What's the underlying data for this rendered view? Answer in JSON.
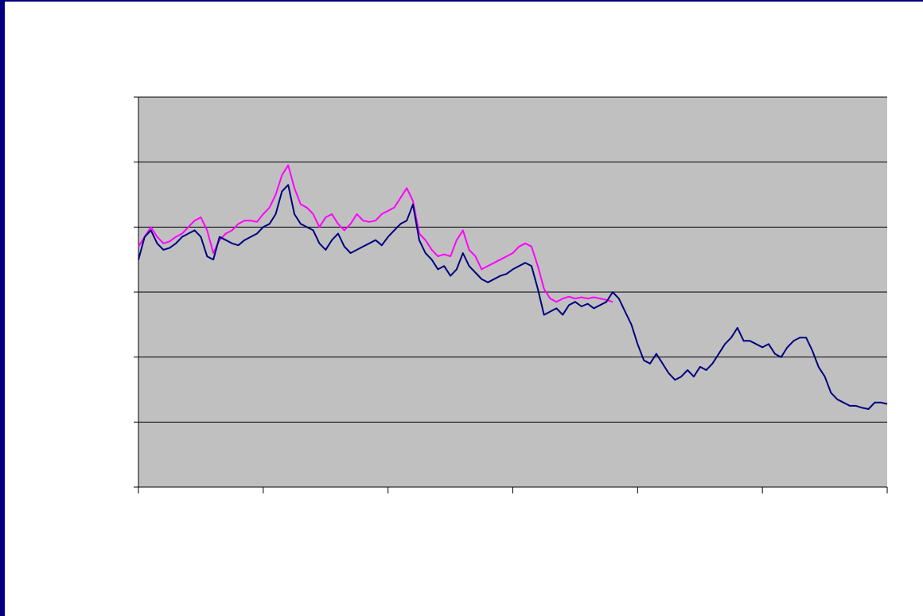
{
  "colors": {
    "frame": "#000080",
    "plot_background": "#c0c0c0",
    "gridline": "#000000",
    "axis": "#000000"
  },
  "chart_data": {
    "type": "line",
    "title": "",
    "xlabel": "",
    "ylabel": "",
    "legend": "none",
    "grid": "horizontal",
    "xlim": [
      0,
      6
    ],
    "ylim": [
      0,
      6
    ],
    "x_ticks": [
      0,
      1,
      2,
      3,
      4,
      5,
      6
    ],
    "y_ticks": [
      0,
      1,
      2,
      3,
      4,
      5,
      6
    ],
    "series": [
      {
        "color": "#ff00ff",
        "x": [
          0.0,
          0.05,
          0.1,
          0.15,
          0.2,
          0.25,
          0.3,
          0.35,
          0.4,
          0.45,
          0.5,
          0.55,
          0.6,
          0.65,
          0.7,
          0.75,
          0.8,
          0.85,
          0.9,
          0.95,
          1.0,
          1.05,
          1.1,
          1.15,
          1.2,
          1.25,
          1.3,
          1.35,
          1.4,
          1.45,
          1.5,
          1.55,
          1.6,
          1.65,
          1.7,
          1.75,
          1.8,
          1.85,
          1.9,
          1.95,
          2.0,
          2.05,
          2.1,
          2.15,
          2.2,
          2.25,
          2.3,
          2.35,
          2.4,
          2.45,
          2.5,
          2.55,
          2.6,
          2.65,
          2.7,
          2.75,
          2.8,
          2.85,
          2.9,
          2.95,
          3.0,
          3.05,
          3.1,
          3.15,
          3.2,
          3.25,
          3.3,
          3.35,
          3.4,
          3.45,
          3.5,
          3.55,
          3.6,
          3.65,
          3.7,
          3.75,
          3.8
        ],
        "y": [
          3.7,
          3.85,
          4.0,
          3.85,
          3.75,
          3.78,
          3.85,
          3.9,
          4.0,
          4.1,
          4.15,
          3.95,
          3.6,
          3.8,
          3.9,
          3.95,
          4.05,
          4.1,
          4.1,
          4.08,
          4.2,
          4.3,
          4.5,
          4.8,
          4.95,
          4.6,
          4.35,
          4.3,
          4.2,
          4.0,
          4.15,
          4.2,
          4.05,
          3.95,
          4.05,
          4.2,
          4.1,
          4.08,
          4.1,
          4.2,
          4.25,
          4.3,
          4.45,
          4.6,
          4.4,
          3.9,
          3.8,
          3.65,
          3.55,
          3.58,
          3.55,
          3.8,
          3.95,
          3.65,
          3.55,
          3.35,
          3.4,
          3.45,
          3.5,
          3.55,
          3.6,
          3.7,
          3.75,
          3.7,
          3.4,
          3.05,
          2.9,
          2.85,
          2.9,
          2.93,
          2.9,
          2.92,
          2.9,
          2.92,
          2.9,
          2.88,
          2.85
        ]
      },
      {
        "color": "#000080",
        "x": [
          0.0,
          0.05,
          0.1,
          0.15,
          0.2,
          0.25,
          0.3,
          0.35,
          0.4,
          0.45,
          0.5,
          0.55,
          0.6,
          0.65,
          0.7,
          0.75,
          0.8,
          0.85,
          0.9,
          0.95,
          1.0,
          1.05,
          1.1,
          1.15,
          1.2,
          1.25,
          1.3,
          1.35,
          1.4,
          1.45,
          1.5,
          1.55,
          1.6,
          1.65,
          1.7,
          1.75,
          1.8,
          1.85,
          1.9,
          1.95,
          2.0,
          2.05,
          2.1,
          2.15,
          2.2,
          2.25,
          2.3,
          2.35,
          2.4,
          2.45,
          2.5,
          2.55,
          2.6,
          2.65,
          2.7,
          2.75,
          2.8,
          2.85,
          2.9,
          2.95,
          3.0,
          3.05,
          3.1,
          3.15,
          3.2,
          3.25,
          3.3,
          3.35,
          3.4,
          3.45,
          3.5,
          3.55,
          3.6,
          3.65,
          3.7,
          3.75,
          3.8,
          3.85,
          3.9,
          3.95,
          4.0,
          4.05,
          4.1,
          4.15,
          4.2,
          4.25,
          4.3,
          4.35,
          4.4,
          4.45,
          4.5,
          4.55,
          4.6,
          4.65,
          4.7,
          4.75,
          4.8,
          4.85,
          4.9,
          4.95,
          5.0,
          5.05,
          5.1,
          5.15,
          5.2,
          5.25,
          5.3,
          5.35,
          5.4,
          5.45,
          5.5,
          5.55,
          5.6,
          5.65,
          5.7,
          5.75,
          5.8,
          5.85,
          5.9,
          5.95,
          6.0
        ],
        "y": [
          3.5,
          3.85,
          3.95,
          3.75,
          3.65,
          3.68,
          3.75,
          3.85,
          3.9,
          3.95,
          3.85,
          3.55,
          3.5,
          3.85,
          3.8,
          3.75,
          3.72,
          3.8,
          3.85,
          3.9,
          4.0,
          4.05,
          4.2,
          4.55,
          4.65,
          4.2,
          4.05,
          4.0,
          3.95,
          3.75,
          3.65,
          3.8,
          3.9,
          3.7,
          3.6,
          3.65,
          3.7,
          3.75,
          3.8,
          3.72,
          3.85,
          3.95,
          4.05,
          4.1,
          4.35,
          3.8,
          3.6,
          3.5,
          3.35,
          3.4,
          3.25,
          3.35,
          3.6,
          3.4,
          3.3,
          3.2,
          3.15,
          3.2,
          3.25,
          3.28,
          3.35,
          3.4,
          3.45,
          3.4,
          3.05,
          2.65,
          2.7,
          2.75,
          2.65,
          2.8,
          2.85,
          2.78,
          2.82,
          2.75,
          2.8,
          2.85,
          3.0,
          2.9,
          2.7,
          2.5,
          2.2,
          1.95,
          1.9,
          2.05,
          1.9,
          1.75,
          1.65,
          1.7,
          1.8,
          1.7,
          1.85,
          1.8,
          1.9,
          2.05,
          2.2,
          2.3,
          2.45,
          2.25,
          2.25,
          2.2,
          2.15,
          2.2,
          2.05,
          2.0,
          2.15,
          2.25,
          2.3,
          2.3,
          2.1,
          1.85,
          1.7,
          1.45,
          1.35,
          1.3,
          1.25,
          1.25,
          1.22,
          1.2,
          1.3,
          1.3,
          1.28
        ]
      }
    ]
  }
}
